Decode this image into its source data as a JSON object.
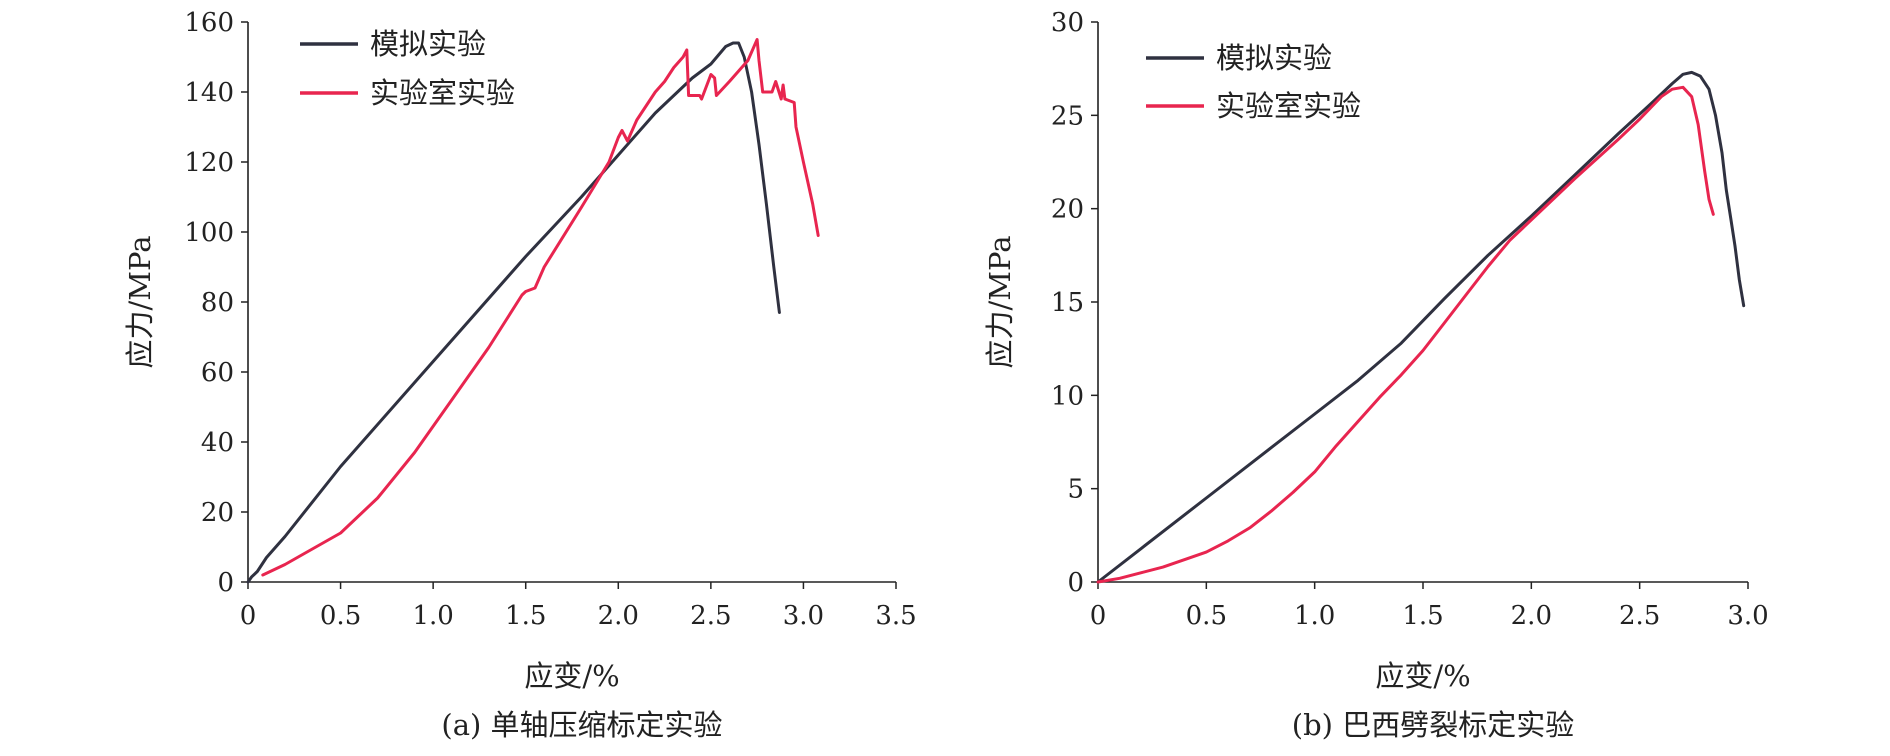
{
  "chart_data": [
    {
      "type": "line",
      "caption": "(a) 单轴压缩标定实验",
      "xlabel": "应变/%",
      "ylabel": "应力/MPa",
      "xlim": [
        0,
        3.5
      ],
      "ylim": [
        0,
        160
      ],
      "xticks": [
        0,
        0.5,
        1.0,
        1.5,
        2.0,
        2.5,
        3.0,
        3.5
      ],
      "xtick_labels": [
        "0",
        "0.5",
        "1.0",
        "1.5",
        "2.0",
        "2.5",
        "3.0",
        "3.5"
      ],
      "yticks": [
        0,
        20,
        40,
        60,
        80,
        100,
        120,
        140,
        160
      ],
      "ytick_labels": [
        "0",
        "20",
        "40",
        "60",
        "80",
        "100",
        "120",
        "140",
        "160"
      ],
      "grid": false,
      "legend_position": "top-left",
      "series": [
        {
          "name": "模拟实验",
          "color": "#2f3140",
          "x": [
            0,
            0.02,
            0.05,
            0.1,
            0.2,
            0.5,
            1.0,
            1.5,
            1.8,
            2.0,
            2.2,
            2.4,
            2.5,
            2.58,
            2.62,
            2.65,
            2.68,
            2.72,
            2.76,
            2.8,
            2.84,
            2.87
          ],
          "y": [
            0,
            1.5,
            3,
            7,
            13,
            33,
            63,
            93,
            110,
            122,
            134,
            144,
            148,
            153,
            154,
            154,
            150,
            140,
            125,
            108,
            90,
            77
          ]
        },
        {
          "name": "实验室实验",
          "color": "#e8254f",
          "x": [
            0.08,
            0.2,
            0.3,
            0.5,
            0.7,
            0.9,
            1.1,
            1.3,
            1.48,
            1.5,
            1.55,
            1.6,
            1.8,
            1.95,
            2.0,
            2.02,
            2.05,
            2.1,
            2.2,
            2.25,
            2.3,
            2.35,
            2.37,
            2.38,
            2.44,
            2.45,
            2.5,
            2.52,
            2.53,
            2.6,
            2.7,
            2.75,
            2.76,
            2.78,
            2.83,
            2.85,
            2.88,
            2.89,
            2.9,
            2.95,
            2.96,
            3.0,
            3.05,
            3.08
          ],
          "y": [
            2,
            5,
            8,
            14,
            24,
            37,
            52,
            67,
            82,
            83,
            84,
            90,
            107,
            120,
            127,
            129,
            126,
            132,
            140,
            143,
            147,
            150,
            152,
            139,
            139,
            138,
            145,
            144,
            139,
            143,
            149,
            155,
            149,
            140,
            140,
            143,
            138,
            142,
            138,
            137,
            130,
            120,
            108,
            99
          ]
        }
      ]
    },
    {
      "type": "line",
      "caption": "(b) 巴西劈裂标定实验",
      "xlabel": "应变/%",
      "ylabel": "应力/MPa",
      "xlim": [
        0,
        3.0
      ],
      "ylim": [
        0,
        30
      ],
      "xticks": [
        0,
        0.5,
        1.0,
        1.5,
        2.0,
        2.5,
        3.0
      ],
      "xtick_labels": [
        "0",
        "0.5",
        "1.0",
        "1.5",
        "2.0",
        "2.5",
        "3.0"
      ],
      "yticks": [
        0,
        5,
        10,
        15,
        20,
        25,
        30
      ],
      "ytick_labels": [
        "0",
        "5",
        "10",
        "15",
        "20",
        "25",
        "30"
      ],
      "grid": false,
      "legend_position": "top-left",
      "series": [
        {
          "name": "模拟实验",
          "color": "#2f3140",
          "x": [
            0,
            0.2,
            0.5,
            0.8,
            1.0,
            1.2,
            1.4,
            1.6,
            1.8,
            2.0,
            2.2,
            2.4,
            2.55,
            2.65,
            2.7,
            2.74,
            2.78,
            2.82,
            2.85,
            2.88,
            2.9,
            2.92,
            2.94,
            2.96,
            2.98
          ],
          "y": [
            0,
            1.8,
            4.5,
            7.2,
            9.0,
            10.8,
            12.8,
            15.2,
            17.5,
            19.6,
            21.8,
            24.0,
            25.6,
            26.7,
            27.2,
            27.3,
            27.1,
            26.4,
            25.0,
            23.0,
            21.0,
            19.5,
            18.0,
            16.2,
            14.8
          ]
        },
        {
          "name": "实验室实验",
          "color": "#e8254f",
          "x": [
            0,
            0.1,
            0.2,
            0.3,
            0.4,
            0.5,
            0.6,
            0.7,
            0.8,
            0.9,
            1.0,
            1.1,
            1.2,
            1.3,
            1.4,
            1.5,
            1.6,
            1.7,
            1.8,
            1.9,
            2.0,
            2.2,
            2.4,
            2.5,
            2.6,
            2.65,
            2.7,
            2.74,
            2.77,
            2.8,
            2.82,
            2.84
          ],
          "y": [
            0,
            0.2,
            0.5,
            0.8,
            1.2,
            1.6,
            2.2,
            2.9,
            3.8,
            4.8,
            5.9,
            7.3,
            8.6,
            9.9,
            11.1,
            12.4,
            13.9,
            15.4,
            16.9,
            18.3,
            19.4,
            21.6,
            23.7,
            24.8,
            26.0,
            26.4,
            26.5,
            26.0,
            24.5,
            22.0,
            20.5,
            19.7
          ]
        }
      ]
    }
  ]
}
